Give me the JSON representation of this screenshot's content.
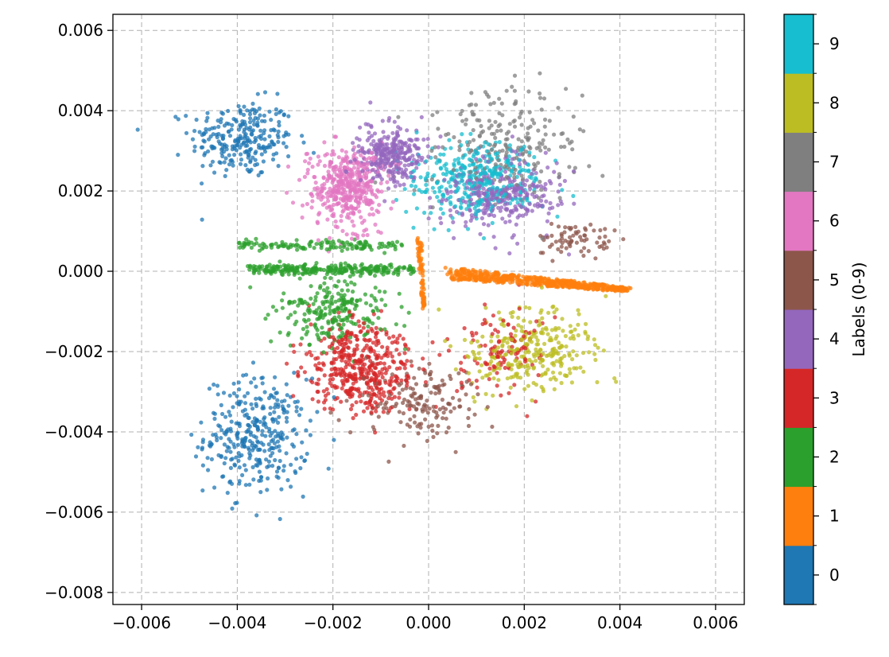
{
  "chart_data": {
    "type": "scatter",
    "title": "",
    "xlabel": "",
    "ylabel": "",
    "xlim": [
      -0.0066,
      0.0066
    ],
    "ylim": [
      -0.0083,
      0.0064
    ],
    "xticks": [
      -0.006,
      -0.004,
      -0.002,
      0.0,
      0.002,
      0.004,
      0.006
    ],
    "xtick_labels": [
      "−0.006",
      "−0.004",
      "−0.002",
      "0.000",
      "0.002",
      "0.004",
      "0.006"
    ],
    "yticks": [
      0.006,
      0.004,
      0.002,
      0.0,
      -0.002,
      -0.004,
      -0.006,
      -0.008
    ],
    "ytick_labels": [
      "0.006",
      "0.004",
      "0.002",
      "0.000",
      "−0.002",
      "−0.004",
      "−0.006",
      "−0.008"
    ],
    "grid": true,
    "grid_style": "dashed",
    "colorbar": {
      "label": "Labels (0-9)",
      "ticks": [
        "0",
        "1",
        "2",
        "3",
        "4",
        "5",
        "6",
        "7",
        "8",
        "9"
      ],
      "colors": [
        "#1f77b4",
        "#ff7f0e",
        "#2ca02c",
        "#d62728",
        "#9467bd",
        "#8c564b",
        "#e377c2",
        "#7f7f7f",
        "#bcbd22",
        "#17becf"
      ]
    },
    "clusters": [
      {
        "label": 0,
        "regions": [
          {
            "center": [
              -0.0039,
              0.0033
            ],
            "spread": [
              0.0009,
              0.0008
            ],
            "n": 260
          },
          {
            "center": [
              -0.0036,
              -0.0041
            ],
            "spread": [
              0.0009,
              0.0012
            ],
            "n": 340
          }
        ]
      },
      {
        "label": 1,
        "regions": [
          {
            "type": "wedge",
            "from": [
              0.0004,
              0.0001
            ],
            "to": [
              0.0042,
              -0.0004
            ],
            "width": 0.0003,
            "n": 520
          },
          {
            "type": "wedge",
            "from": [
              -0.0002,
              0.0009
            ],
            "to": [
              -0.0001,
              -0.0009
            ],
            "width": 0.0002,
            "n": 80
          }
        ]
      },
      {
        "label": 2,
        "regions": [
          {
            "type": "band",
            "x": [
              -0.0038,
              -0.0003
            ],
            "y": 5e-05,
            "n": 260
          },
          {
            "type": "band",
            "x": [
              -0.004,
              -0.0005
            ],
            "y": 0.00065,
            "n": 130
          },
          {
            "center": [
              -0.002,
              -0.001
            ],
            "spread": [
              0.001,
              0.0007
            ],
            "n": 240
          }
        ]
      },
      {
        "label": 3,
        "regions": [
          {
            "center": [
              -0.0014,
              -0.0024
            ],
            "spread": [
              0.0009,
              0.0009
            ],
            "n": 450
          },
          {
            "center": [
              0.0015,
              -0.002
            ],
            "spread": [
              0.0008,
              0.001
            ],
            "n": 110
          }
        ]
      },
      {
        "label": 4,
        "regions": [
          {
            "center": [
              -0.0008,
              0.0029
            ],
            "spread": [
              0.0006,
              0.0006
            ],
            "n": 300
          },
          {
            "center": [
              0.0015,
              0.0019
            ],
            "spread": [
              0.001,
              0.0008
            ],
            "n": 320
          }
        ]
      },
      {
        "label": 5,
        "regions": [
          {
            "center": [
              -0.0002,
              -0.0033
            ],
            "spread": [
              0.0009,
              0.0008
            ],
            "n": 160
          },
          {
            "center": [
              0.003,
              0.0008
            ],
            "spread": [
              0.0006,
              0.0004
            ],
            "n": 70
          }
        ]
      },
      {
        "label": 6,
        "regions": [
          {
            "center": [
              -0.0017,
              0.0021
            ],
            "spread": [
              0.0006,
              0.0008
            ],
            "n": 440
          }
        ]
      },
      {
        "label": 7,
        "regions": [
          {
            "center": [
              0.0016,
              0.0032
            ],
            "spread": [
              0.0014,
              0.0011
            ],
            "n": 230
          }
        ]
      },
      {
        "label": 8,
        "regions": [
          {
            "center": [
              0.0021,
              -0.002
            ],
            "spread": [
              0.0011,
              0.0009
            ],
            "n": 300
          }
        ]
      },
      {
        "label": 9,
        "regions": [
          {
            "center": [
              0.001,
              0.0023
            ],
            "spread": [
              0.0011,
              0.0008
            ],
            "n": 360
          }
        ]
      }
    ]
  }
}
